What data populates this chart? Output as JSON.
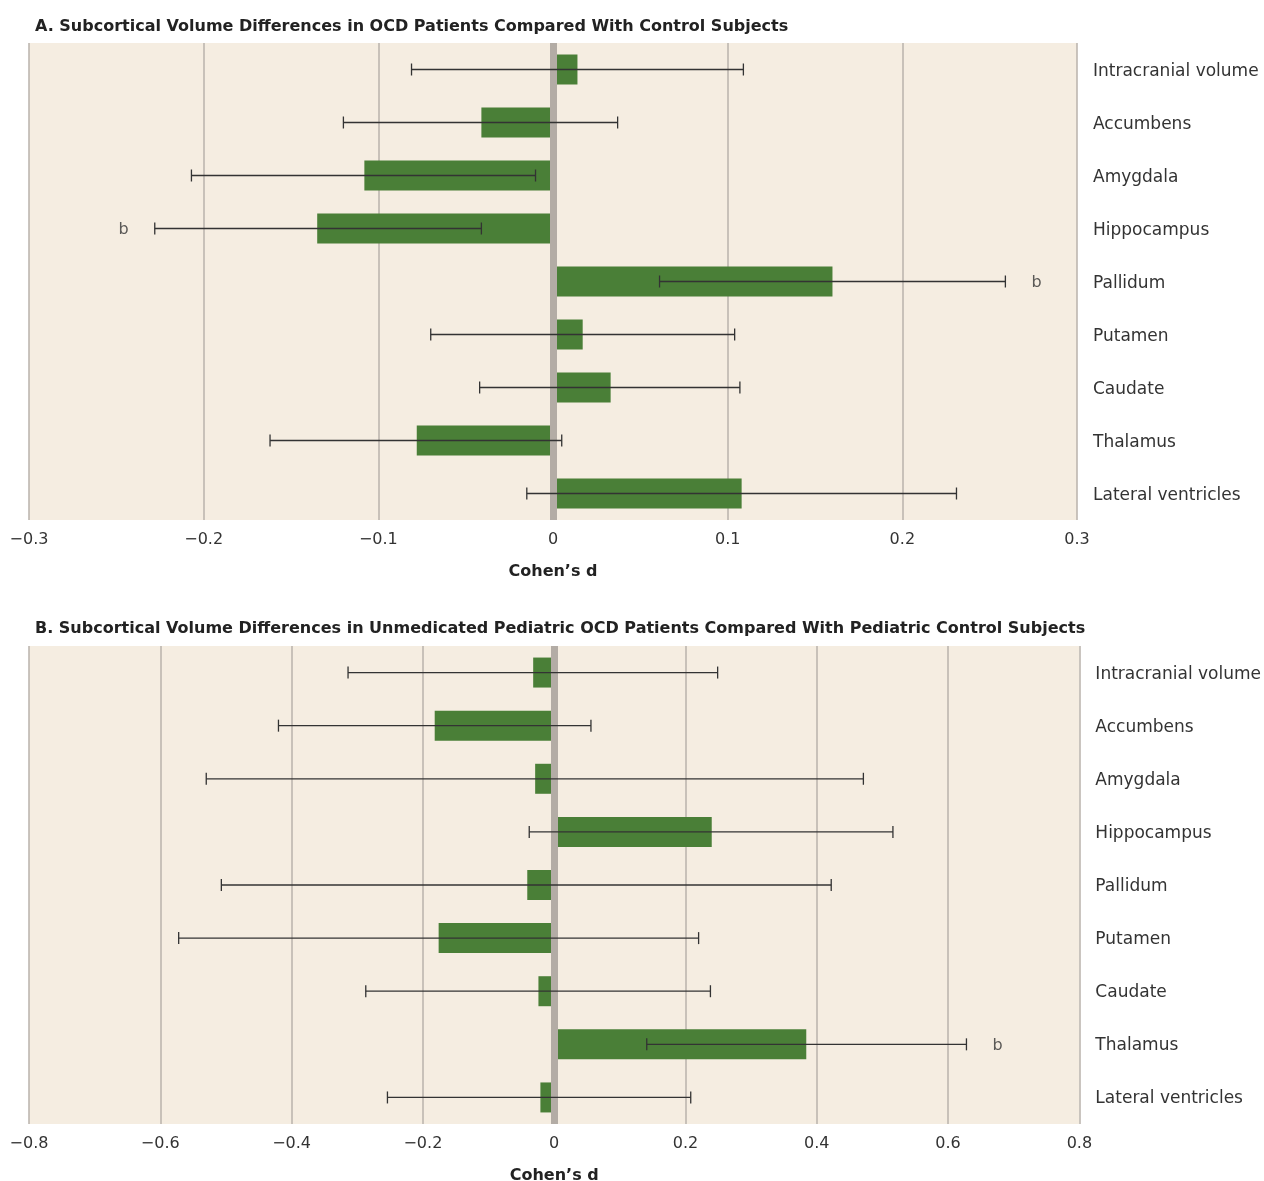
{
  "chart_data": [
    {
      "type": "bar",
      "orientation": "horizontal",
      "title": "A. Subcortical Volume Differences in OCD Patients Compared With Control Subjects",
      "xlabel": "Cohen’s d",
      "categories": [
        "Intracranial volume",
        "Accumbens",
        "Amygdala",
        "Hippocampus",
        "Pallidum",
        "Putamen",
        "Caudate",
        "Thalamus",
        "Lateral ventricles"
      ],
      "values": [
        0.014,
        -0.041,
        -0.108,
        -0.135,
        0.16,
        0.017,
        0.033,
        -0.078,
        0.108
      ],
      "errors": [
        [
          -0.081,
          0.109
        ],
        [
          -0.12,
          0.037
        ],
        [
          -0.207,
          -0.01
        ],
        [
          -0.228,
          -0.041
        ],
        [
          0.061,
          0.259
        ],
        [
          -0.07,
          0.104
        ],
        [
          -0.042,
          0.107
        ],
        [
          -0.162,
          0.005
        ],
        [
          -0.015,
          0.231
        ]
      ],
      "color": "#4a7f37",
      "xlim": [
        -0.3,
        0.3
      ],
      "xticks": [
        {
          "value": -0.3,
          "label": "−0.3"
        },
        {
          "value": -0.2,
          "label": "−0.2"
        },
        {
          "value": -0.1,
          "label": "−0.1"
        },
        0,
        0.1,
        0.2,
        0.3
      ],
      "grid": "x",
      "ref_lines": [
        {
          "axis": "x",
          "value": 0,
          "color": "#b3aca5"
        }
      ],
      "annotations": [
        {
          "text": "b",
          "x": -0.228,
          "y": "Hippocampus"
        },
        {
          "text": "b",
          "x": 0.259,
          "y": "Pallidum"
        }
      ]
    },
    {
      "type": "bar",
      "orientation": "horizontal",
      "title": "B. Subcortical Volume Differences in Unmedicated Pediatric OCD Patients Compared With Pediatric Control Subjects",
      "xlabel": "Cohen’s d",
      "categories": [
        "Intracranial volume",
        "Accumbens",
        "Amygdala",
        "Hippocampus",
        "Pallidum",
        "Putamen",
        "Caudate",
        "Thalamus",
        "Lateral ventricles"
      ],
      "values": [
        -0.032,
        -0.182,
        -0.029,
        0.24,
        -0.041,
        -0.176,
        -0.024,
        0.384,
        -0.021
      ],
      "errors": [
        [
          -0.314,
          0.249
        ],
        [
          -0.42,
          0.056
        ],
        [
          -0.53,
          0.471
        ],
        [
          -0.038,
          0.516
        ],
        [
          -0.507,
          0.422
        ],
        [
          -0.572,
          0.22
        ],
        [
          -0.287,
          0.238
        ],
        [
          0.141,
          0.628
        ],
        [
          -0.254,
          0.208
        ]
      ],
      "color": "#4a7f37",
      "xlim": [
        -0.8,
        0.8
      ],
      "xticks": [
        {
          "value": -0.8,
          "label": "−0.8"
        },
        {
          "value": -0.6,
          "label": "−0.6"
        },
        {
          "value": -0.4,
          "label": "−0.4"
        },
        {
          "value": -0.2,
          "label": "−0.2"
        },
        0,
        0.2,
        0.4,
        0.6,
        0.8
      ],
      "grid": "x",
      "ref_lines": [
        {
          "axis": "x",
          "value": 0,
          "color": "#b3aca5"
        }
      ],
      "annotations": [
        {
          "text": "b",
          "x": 0.628,
          "y": "Thalamus"
        }
      ]
    }
  ]
}
